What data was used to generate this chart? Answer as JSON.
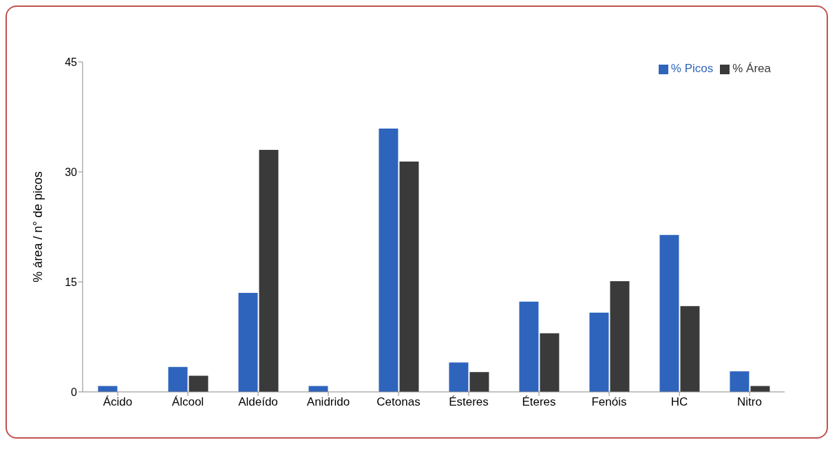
{
  "chart_data": {
    "type": "bar",
    "ylabel": "% área / n° de picos",
    "categories": [
      "Ácido",
      "Álcool",
      "Aldeído",
      "Anidrido",
      "Cetonas",
      "Ésteres",
      "Éteres",
      "Fenóis",
      "HC",
      "Nitro"
    ],
    "series": [
      {
        "name": "% Picos",
        "color": "#2f64bd",
        "values": [
          0.8,
          3.4,
          13.5,
          0.8,
          35.9,
          4.0,
          12.3,
          10.8,
          21.4,
          2.8
        ]
      },
      {
        "name": "% Área",
        "color": "#3a3a3a",
        "values": [
          null,
          2.2,
          33.0,
          null,
          31.4,
          2.7,
          8.0,
          15.1,
          11.7,
          0.8
        ]
      }
    ],
    "ylim": [
      0,
      45
    ],
    "yticks": [
      0,
      15,
      30,
      45
    ],
    "grid": false,
    "legend": "top right"
  }
}
